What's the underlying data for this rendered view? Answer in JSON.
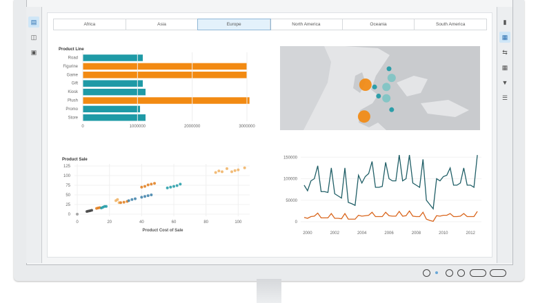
{
  "tabs": [
    {
      "label": "Africa"
    },
    {
      "label": "Asia"
    },
    {
      "label": "Europe",
      "selected": true
    },
    {
      "label": "North America"
    },
    {
      "label": "Oceania"
    },
    {
      "label": "South America"
    }
  ],
  "left_sidebar": {
    "icons": [
      "data-icon",
      "share-icon",
      "report-icon"
    ],
    "active": 0
  },
  "right_sidebar": {
    "icons": [
      "document-icon",
      "roles-icon",
      "properties-icon",
      "grid-icon",
      "filter-icon",
      "rank-icon"
    ],
    "active": 1
  },
  "colors": {
    "teal": "#1f9aa6",
    "orange": "#f28a12",
    "dark_teal": "#1f5e66",
    "line_orange": "#d9651c",
    "map_land": "#c9cbce",
    "map_water": "#e4e5e7"
  },
  "chart_data": [
    {
      "type": "bar",
      "orientation": "horizontal",
      "title": "Product Line",
      "categories": [
        "Road",
        "Figurine",
        "Game",
        "Gift",
        "Kiosk",
        "Plush",
        "Promo",
        "Store"
      ],
      "values": [
        1100000,
        3000000,
        3000000,
        1100000,
        1150000,
        3050000,
        1050000,
        1150000
      ],
      "highlight": [
        false,
        true,
        true,
        false,
        false,
        true,
        false,
        false
      ],
      "xticks": [
        "0",
        "1000000",
        "2000000",
        "3000000"
      ],
      "xlim": [
        0,
        3200000
      ]
    },
    {
      "type": "scatter",
      "ylabel": "Product Sale",
      "xlabel": "Product Cost of Sale",
      "xticks": [
        "0",
        "20",
        "40",
        "60",
        "80",
        "100"
      ],
      "yticks": [
        "0",
        "25",
        "50",
        "75",
        "100",
        "125"
      ],
      "xlim": [
        0,
        105
      ],
      "ylim": [
        0,
        125
      ],
      "group_colors": [
        "#999999",
        "#3d3d3d",
        "#e07b1a",
        "#1f9aa6",
        "#f0b060",
        "#3b7fa8"
      ],
      "points": [
        [
          0,
          0,
          0
        ],
        [
          6,
          7,
          1
        ],
        [
          7,
          8,
          1
        ],
        [
          8,
          9,
          1
        ],
        [
          9,
          10,
          1
        ],
        [
          12,
          15,
          2
        ],
        [
          13,
          16,
          2
        ],
        [
          14,
          17,
          2
        ],
        [
          15,
          16,
          3
        ],
        [
          16,
          18,
          3
        ],
        [
          17,
          20,
          3
        ],
        [
          18,
          20,
          3
        ],
        [
          24,
          35,
          4
        ],
        [
          25,
          38,
          4
        ],
        [
          26,
          30,
          4
        ],
        [
          27,
          30,
          2
        ],
        [
          29,
          31,
          2
        ],
        [
          31,
          33,
          2
        ],
        [
          32,
          35,
          5
        ],
        [
          34,
          38,
          5
        ],
        [
          36,
          40,
          5
        ],
        [
          40,
          44,
          5
        ],
        [
          42,
          46,
          5
        ],
        [
          44,
          48,
          5
        ],
        [
          46,
          50,
          5
        ],
        [
          40,
          70,
          2
        ],
        [
          42,
          72,
          2
        ],
        [
          44,
          76,
          2
        ],
        [
          46,
          78,
          2
        ],
        [
          48,
          80,
          2
        ],
        [
          56,
          68,
          3
        ],
        [
          58,
          70,
          3
        ],
        [
          60,
          72,
          3
        ],
        [
          62,
          74,
          3
        ],
        [
          64,
          78,
          3
        ],
        [
          86,
          108,
          4
        ],
        [
          88,
          112,
          4
        ],
        [
          90,
          110,
          4
        ],
        [
          93,
          118,
          4
        ],
        [
          96,
          110,
          4
        ],
        [
          98,
          113,
          4
        ],
        [
          100,
          115,
          4
        ],
        [
          104,
          120,
          4
        ]
      ]
    },
    {
      "type": "line",
      "xticks": [
        "2000",
        "2002",
        "2004",
        "2006",
        "2008",
        "2010",
        "2012"
      ],
      "yticks": [
        "0",
        "50000",
        "100000",
        "150000"
      ],
      "xlim": [
        1999.6,
        2012.7
      ],
      "ylim": [
        0,
        160000
      ],
      "x": [
        1999.75,
        2000,
        2000.25,
        2000.5,
        2000.75,
        2001,
        2001.25,
        2001.5,
        2001.75,
        2002,
        2002.25,
        2002.5,
        2002.75,
        2003,
        2003.25,
        2003.5,
        2003.75,
        2004,
        2004.25,
        2004.5,
        2004.75,
        2005,
        2005.25,
        2005.5,
        2005.75,
        2006,
        2006.25,
        2006.5,
        2006.75,
        2007,
        2007.25,
        2007.5,
        2007.75,
        2008,
        2008.25,
        2008.5,
        2008.75,
        2009,
        2009.25,
        2009.5,
        2009.75,
        2010,
        2010.25,
        2010.5,
        2010.75,
        2011,
        2011.25,
        2011.5,
        2011.75,
        2012,
        2012.25,
        2012.5
      ],
      "series": [
        {
          "color": "#1f5e66",
          "values": [
            85000,
            72000,
            95000,
            100000,
            130000,
            70000,
            70000,
            68000,
            125000,
            65000,
            60000,
            55000,
            125000,
            45000,
            42000,
            38000,
            108000,
            90000,
            105000,
            112000,
            140000,
            80000,
            80000,
            82000,
            138000,
            100000,
            95000,
            95000,
            155000,
            95000,
            100000,
            155000,
            90000,
            85000,
            80000,
            145000,
            50000,
            40000,
            30000,
            100000,
            95000,
            105000,
            108000,
            125000,
            85000,
            85000,
            90000,
            125000,
            85000,
            85000,
            80000,
            155000
          ]
        },
        {
          "color": "#d9651c",
          "values": [
            10000,
            8000,
            12000,
            13000,
            20000,
            9000,
            9000,
            9000,
            19000,
            8000,
            8000,
            7000,
            19000,
            6000,
            6000,
            6000,
            15000,
            13000,
            14000,
            15000,
            22000,
            12000,
            12000,
            12000,
            22000,
            14000,
            13000,
            13000,
            24000,
            13000,
            14000,
            25000,
            13000,
            12000,
            12000,
            22000,
            6000,
            3000,
            1000,
            14000,
            13000,
            15000,
            15000,
            19000,
            12000,
            12000,
            13000,
            19000,
            12000,
            12000,
            12000,
            24000
          ]
        }
      ]
    },
    {
      "type": "map",
      "region": "Europe",
      "bubbles": [
        {
          "lon": -8,
          "lat": 53,
          "size": "large",
          "color": "#f28a12"
        },
        {
          "lon": -9,
          "lat": 39,
          "size": "large",
          "color": "#f28a12"
        },
        {
          "lon": 10,
          "lat": 60,
          "size": "small",
          "color": "#1f9aa6"
        },
        {
          "lon": 12,
          "lat": 56,
          "size": "medium",
          "color": "#7fc4c4"
        },
        {
          "lon": 8,
          "lat": 52,
          "size": "medium",
          "color": "#7fc4c4"
        },
        {
          "lon": 8,
          "lat": 47,
          "size": "medium",
          "color": "#7fc4c4"
        },
        {
          "lon": 2,
          "lat": 48,
          "size": "small",
          "color": "#1f9aa6"
        },
        {
          "lon": 12,
          "lat": 42,
          "size": "small",
          "color": "#1f9aa6"
        },
        {
          "lon": -1,
          "lat": 52,
          "size": "small",
          "color": "#1f9aa6"
        }
      ]
    }
  ]
}
